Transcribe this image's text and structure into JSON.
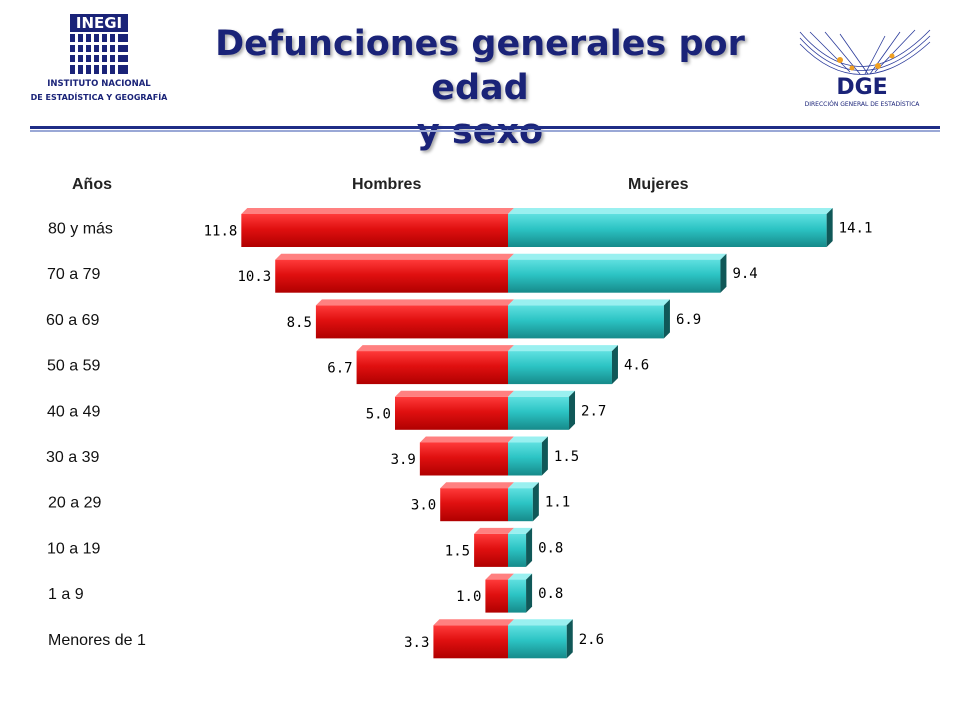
{
  "header": {
    "logo_left": {
      "acronym": "INEGI",
      "line1": "INSTITUTO NACIONAL",
      "line2": "DE ESTADÍSTICA Y GEOGRAFÍA",
      "color": "#1a2378"
    },
    "title_line1": "Defunciones generales por edad",
    "title_line2": "y sexo",
    "logo_right": {
      "acronym": "DGE",
      "subtitle": "DIRECCIÓN GENERAL DE ESTADÍSTICA",
      "color": "#1a2378"
    }
  },
  "colors": {
    "hombres_front": "#e01010",
    "hombres_top": "#ff8080",
    "hombres_side": "#7a0000",
    "mujeres_front": "#2cc4c4",
    "mujeres_top": "#9af0f0",
    "mujeres_side": "#105858"
  },
  "chart_data": {
    "type": "bar",
    "orientation": "horizontal",
    "layout": "population-pyramid",
    "title": "Defunciones generales por edad y sexo",
    "column_headers": {
      "age": "Años",
      "left": "Hombres",
      "right": "Mujeres"
    },
    "categories": [
      "80 y más",
      "70 a 79",
      "60 a 69",
      "50 a 59",
      "40 a 49",
      "30 a 39",
      "20 a 29",
      "10 a 19",
      "1 a 9",
      "Menores de 1"
    ],
    "series": [
      {
        "name": "Hombres",
        "side": "left",
        "values": [
          11.8,
          10.3,
          8.5,
          6.7,
          5.0,
          3.9,
          3.0,
          1.5,
          1.0,
          3.3
        ],
        "labels": [
          "11.8",
          "10.3",
          "8.5",
          "6.7",
          "5.0",
          "3.9",
          "3.0",
          "1.5",
          "1.0",
          "3.3"
        ]
      },
      {
        "name": "Mujeres",
        "side": "right",
        "values": [
          14.1,
          9.4,
          6.9,
          4.6,
          2.7,
          1.5,
          1.1,
          0.8,
          0.8,
          2.6
        ],
        "labels": [
          "14.1",
          "9.4",
          "6.9",
          "4.6",
          "2.7",
          "1.5",
          "1.1",
          "0.8",
          "0.8",
          "2.6"
        ]
      }
    ],
    "xlim": [
      0,
      14.1
    ],
    "grid": false,
    "legend": "none"
  }
}
